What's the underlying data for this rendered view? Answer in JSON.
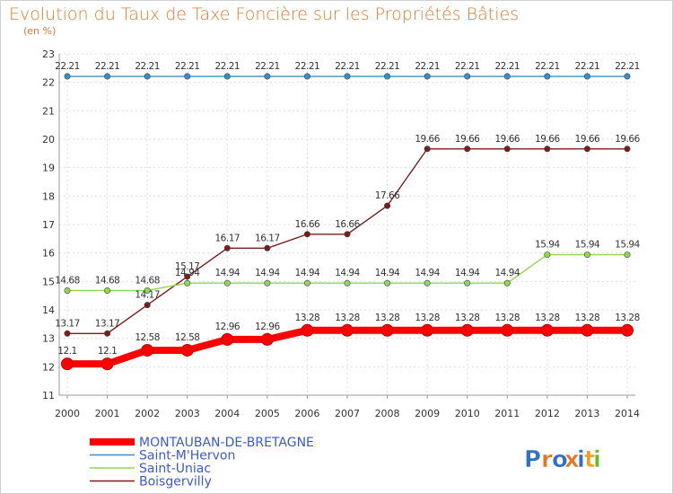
{
  "chart_data": {
    "type": "line",
    "title": "Evolution du Taux de Taxe Foncière sur les Propriétés Bâties",
    "subtitle": "(en %)",
    "x": [
      2000,
      2001,
      2002,
      2003,
      2004,
      2005,
      2006,
      2007,
      2008,
      2009,
      2010,
      2011,
      2012,
      2013,
      2014
    ],
    "x_tick_labels": [
      "2000",
      "2001",
      "2002",
      "2003",
      "2004",
      "2005",
      "2006",
      "2007",
      "2008",
      "2009",
      "2010",
      "2011",
      "2012",
      "2013",
      "2014"
    ],
    "ylim": [
      11,
      23
    ],
    "y_ticks": [
      11,
      12,
      13,
      14,
      15,
      16,
      17,
      18,
      19,
      20,
      21,
      22,
      23
    ],
    "grid": true,
    "series": [
      {
        "name": "Saint-M'Hervon",
        "color": "#3a8fc8",
        "values": [
          22.21,
          22.21,
          22.21,
          22.21,
          22.21,
          22.21,
          22.21,
          22.21,
          22.21,
          22.21,
          22.21,
          22.21,
          22.21,
          22.21,
          22.21
        ],
        "labels": [
          "22.21",
          "22.21",
          "22.21",
          "22.21",
          "22.21",
          "22.21",
          "22.21",
          "22.21",
          "22.21",
          "22.21",
          "22.21",
          "22.21",
          "22.21",
          "22.21",
          "22.21"
        ]
      },
      {
        "name": "Boisgervilly",
        "color": "#7a1c1c",
        "values": [
          13.17,
          13.17,
          14.17,
          15.17,
          16.17,
          16.17,
          16.66,
          16.66,
          17.66,
          19.66,
          19.66,
          19.66,
          19.66,
          19.66,
          19.66
        ],
        "labels": [
          "13.17",
          "13.17",
          "14.17",
          "15.17",
          "16.17",
          "16.17",
          "16.66",
          "16.66",
          "17.66",
          "19.66",
          "19.66",
          "19.66",
          "19.66",
          "19.66",
          "19.66"
        ]
      },
      {
        "name": "Saint-Uniac",
        "color": "#8fd850",
        "values": [
          14.68,
          14.68,
          14.68,
          14.94,
          14.94,
          14.94,
          14.94,
          14.94,
          14.94,
          14.94,
          14.94,
          14.94,
          15.94,
          15.94,
          15.94
        ],
        "labels": [
          "14.68",
          "14.68",
          "14.68",
          "14.94",
          "14.94",
          "14.94",
          "14.94",
          "14.94",
          "14.94",
          "14.94",
          "14.94",
          "14.94",
          "15.94",
          "15.94",
          "15.94"
        ]
      },
      {
        "name": "MONTAUBAN-DE-BRETAGNE",
        "color": "#ff0000",
        "values": [
          12.1,
          12.1,
          12.58,
          12.58,
          12.96,
          12.96,
          13.28,
          13.28,
          13.28,
          13.28,
          13.28,
          13.28,
          13.28,
          13.28,
          13.28
        ],
        "labels": [
          "12.1",
          "12.1",
          "12.58",
          "12.58",
          "12.96",
          "12.96",
          "13.28",
          "13.28",
          "13.28",
          "13.28",
          "13.28",
          "13.28",
          "13.28",
          "13.28",
          "13.28"
        ]
      }
    ],
    "legend": {
      "position": "bottom-left",
      "entries": [
        {
          "name": "MONTAUBAN-DE-BRETAGNE",
          "color": "#ff0000",
          "text_color": "#3b58d8"
        },
        {
          "name": "Saint-M'Hervon",
          "color": "#3a8fc8",
          "text_color": "#3b58d8"
        },
        {
          "name": "Saint-Uniac",
          "color": "#8fd850",
          "text_color": "#3b58d8"
        },
        {
          "name": "Boisgervilly",
          "color": "#7a1c1c",
          "text_color": "#3b58d8"
        }
      ]
    }
  },
  "logo": {
    "text": "Proxiti",
    "letters": [
      {
        "ch": "P",
        "color": "#2e6fc8"
      },
      {
        "ch": "r",
        "color": "#e8741e"
      },
      {
        "ch": "o",
        "color": "#2e6fc8"
      },
      {
        "ch": "x",
        "color": "#e8741e"
      },
      {
        "ch": "i",
        "color": "#2e6fc8"
      },
      {
        "ch": "t",
        "color": "#f0a01e"
      },
      {
        "ch": "i",
        "color": "#6ab82e"
      }
    ]
  }
}
